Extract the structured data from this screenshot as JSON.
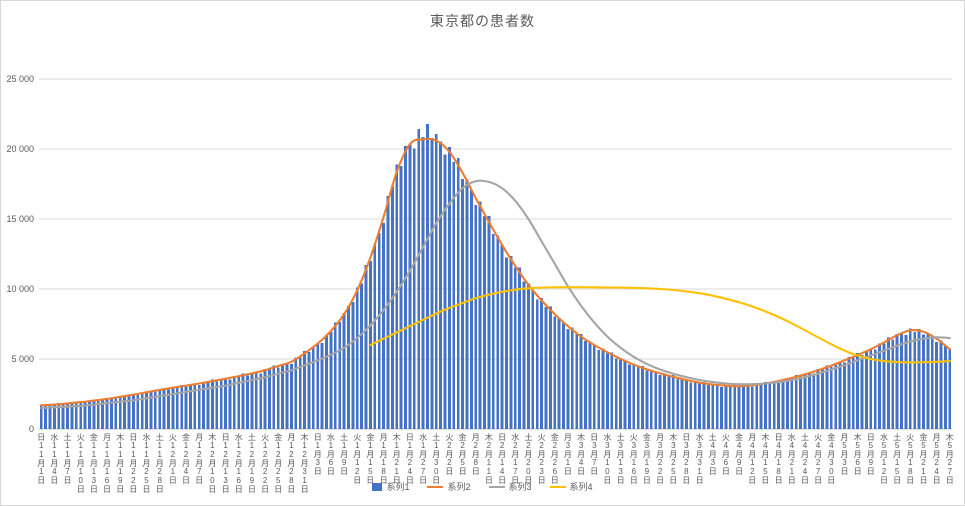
{
  "chart": {
    "frame_border_color": "#d6d6d6",
    "background": "#ffffff"
  },
  "chart_data": {
    "type": "combo",
    "title": "東京都の患者数",
    "xlabel": "",
    "ylabel": "",
    "ylim": [
      0,
      25000
    ],
    "grid": true,
    "legend_position": "bottom",
    "colors": {
      "grid": "#d9d9d9",
      "axis": "#bfbfbf",
      "text": "#595959"
    },
    "y_ticks": [
      {
        "value": 0,
        "label": "0"
      },
      {
        "value": 5000,
        "label": "5 000"
      },
      {
        "value": 10000,
        "label": "10 000"
      },
      {
        "value": 15000,
        "label": "15 000"
      },
      {
        "value": 20000,
        "label": "20 000"
      },
      {
        "value": 25000,
        "label": "25 000"
      }
    ],
    "x_tick_step_days": 3,
    "x_ticks": [
      {
        "weekday": "日",
        "date": "11月1日"
      },
      {
        "weekday": "水",
        "date": "11月4日"
      },
      {
        "weekday": "土",
        "date": "11月7日"
      },
      {
        "weekday": "火",
        "date": "11月10日"
      },
      {
        "weekday": "金",
        "date": "11月13日"
      },
      {
        "weekday": "月",
        "date": "11月16日"
      },
      {
        "weekday": "木",
        "date": "11月19日"
      },
      {
        "weekday": "日",
        "date": "11月22日"
      },
      {
        "weekday": "水",
        "date": "11月25日"
      },
      {
        "weekday": "土",
        "date": "11月28日"
      },
      {
        "weekday": "火",
        "date": "12月1日"
      },
      {
        "weekday": "金",
        "date": "12月4日"
      },
      {
        "weekday": "月",
        "date": "12月7日"
      },
      {
        "weekday": "木",
        "date": "12月10日"
      },
      {
        "weekday": "日",
        "date": "12月13日"
      },
      {
        "weekday": "水",
        "date": "12月16日"
      },
      {
        "weekday": "土",
        "date": "12月19日"
      },
      {
        "weekday": "火",
        "date": "12月22日"
      },
      {
        "weekday": "金",
        "date": "12月25日"
      },
      {
        "weekday": "月",
        "date": "12月28日"
      },
      {
        "weekday": "木",
        "date": "12月31日"
      },
      {
        "weekday": "日",
        "date": "1月3日"
      },
      {
        "weekday": "水",
        "date": "1月6日"
      },
      {
        "weekday": "土",
        "date": "1月9日"
      },
      {
        "weekday": "火",
        "date": "1月12日"
      },
      {
        "weekday": "金",
        "date": "1月15日"
      },
      {
        "weekday": "月",
        "date": "1月18日"
      },
      {
        "weekday": "木",
        "date": "1月21日"
      },
      {
        "weekday": "日",
        "date": "1月24日"
      },
      {
        "weekday": "水",
        "date": "1月27日"
      },
      {
        "weekday": "土",
        "date": "1月30日"
      },
      {
        "weekday": "火",
        "date": "2月2日"
      },
      {
        "weekday": "金",
        "date": "2月5日"
      },
      {
        "weekday": "月",
        "date": "2月8日"
      },
      {
        "weekday": "木",
        "date": "2月11日"
      },
      {
        "weekday": "日",
        "date": "2月14日"
      },
      {
        "weekday": "水",
        "date": "2月17日"
      },
      {
        "weekday": "土",
        "date": "2月20日"
      },
      {
        "weekday": "火",
        "date": "2月23日"
      },
      {
        "weekday": "金",
        "date": "2月26日"
      },
      {
        "weekday": "月",
        "date": "3月1日"
      },
      {
        "weekday": "木",
        "date": "3月4日"
      },
      {
        "weekday": "日",
        "date": "3月7日"
      },
      {
        "weekday": "水",
        "date": "3月10日"
      },
      {
        "weekday": "土",
        "date": "3月13日"
      },
      {
        "weekday": "火",
        "date": "3月16日"
      },
      {
        "weekday": "金",
        "date": "3月19日"
      },
      {
        "weekday": "月",
        "date": "3月22日"
      },
      {
        "weekday": "木",
        "date": "3月25日"
      },
      {
        "weekday": "日",
        "date": "3月28日"
      },
      {
        "weekday": "水",
        "date": "3月31日"
      },
      {
        "weekday": "土",
        "date": "4月3日"
      },
      {
        "weekday": "火",
        "date": "4月6日"
      },
      {
        "weekday": "金",
        "date": "4月9日"
      },
      {
        "weekday": "月",
        "date": "4月12日"
      },
      {
        "weekday": "木",
        "date": "4月15日"
      },
      {
        "weekday": "日",
        "date": "4月18日"
      },
      {
        "weekday": "水",
        "date": "4月21日"
      },
      {
        "weekday": "土",
        "date": "4月24日"
      },
      {
        "weekday": "火",
        "date": "4月27日"
      },
      {
        "weekday": "金",
        "date": "4月30日"
      },
      {
        "weekday": "月",
        "date": "5月3日"
      },
      {
        "weekday": "木",
        "date": "5月6日"
      },
      {
        "weekday": "日",
        "date": "5月9日"
      },
      {
        "weekday": "水",
        "date": "5月12日"
      },
      {
        "weekday": "土",
        "date": "5月15日"
      },
      {
        "weekday": "火",
        "date": "5月18日"
      },
      {
        "weekday": "金",
        "date": "5月21日"
      },
      {
        "weekday": "月",
        "date": "5月24日"
      },
      {
        "weekday": "木",
        "date": "5月27日"
      }
    ],
    "series": [
      {
        "name": "系列1",
        "type": "bar",
        "color": "#4472C4",
        "start_day": 0,
        "step_days": 1,
        "values": [
          1700,
          1670,
          1780,
          1750,
          1840,
          1770,
          1850,
          1850,
          1830,
          1960,
          1940,
          2050,
          1990,
          2080,
          2100,
          2090,
          2240,
          2230,
          2370,
          2300,
          2420,
          2450,
          2430,
          2610,
          2590,
          2760,
          2680,
          2820,
          2840,
          2810,
          3010,
          2970,
          3140,
          3040,
          3180,
          3200,
          3150,
          3370,
          3330,
          3520,
          3410,
          3570,
          3590,
          3540,
          3790,
          3740,
          3960,
          3830,
          4010,
          4040,
          3980,
          4280,
          4260,
          4530,
          4410,
          4650,
          4700,
          4660,
          5100,
          5150,
          5560,
          5490,
          5910,
          6100,
          6160,
          6730,
          6930,
          7620,
          7640,
          8280,
          8780,
          9070,
          10120,
          10400,
          11720,
          12010,
          13260,
          14000,
          14710,
          16660,
          17330,
          18880,
          18780,
          20200,
          20330,
          20050,
          21420,
          20860,
          21770,
          20780,
          21080,
          20530,
          19590,
          20130,
          19070,
          19360,
          17860,
          17830,
          17080,
          16010,
          16240,
          15200,
          15220,
          13920,
          13810,
          13150,
          12250,
          12340,
          11530,
          11540,
          10540,
          10400,
          9930,
          9260,
          9360,
          8710,
          8760,
          8040,
          7980,
          7600,
          7130,
          7240,
          6780,
          6800,
          6270,
          6260,
          6000,
          5630,
          5750,
          5420,
          5470,
          5050,
          5060,
          4880,
          4600,
          4690,
          4440,
          4510,
          4180,
          4190,
          4060,
          3860,
          3970,
          3760,
          3840,
          3580,
          3610,
          3500,
          3330,
          3440,
          3280,
          3350,
          3150,
          3210,
          3140,
          3010,
          3150,
          3040,
          3150,
          2990,
          3110,
          3100,
          3030,
          3210,
          3170,
          3350,
          3230,
          3380,
          3430,
          3400,
          3650,
          3610,
          3850,
          3750,
          3950,
          4000,
          3980,
          4280,
          4260,
          4530,
          4430,
          4700,
          4780,
          4750,
          5130,
          5100,
          5430,
          5290,
          5610,
          5700,
          5670,
          6120,
          6110,
          6540,
          6390,
          6770,
          6820,
          6730,
          7190,
          6930,
          7160,
          6760,
          6800,
          6570,
          6210,
          6320,
          5940,
          5740
        ]
      },
      {
        "name": "系列2",
        "type": "line",
        "color": "#ED7D31",
        "start_day": 0,
        "step_days": 3,
        "values": [
          1700,
          1750,
          1830,
          1920,
          2030,
          2150,
          2300,
          2450,
          2620,
          2790,
          2950,
          3100,
          3250,
          3420,
          3590,
          3780,
          3970,
          4200,
          4500,
          4800,
          5400,
          6100,
          7000,
          8200,
          9900,
          12250,
          15150,
          18350,
          20350,
          20700,
          20600,
          19800,
          18300,
          16500,
          14800,
          13150,
          11650,
          10300,
          9180,
          8200,
          7350,
          6600,
          6000,
          5480,
          5010,
          4600,
          4260,
          3980,
          3730,
          3500,
          3310,
          3180,
          3090,
          3050,
          3130,
          3250,
          3430,
          3650,
          3910,
          4200,
          4530,
          4900,
          5280,
          5700,
          6180,
          6700,
          7050,
          6950,
          6450,
          5700
        ]
      },
      {
        "name": "系列3",
        "type": "line",
        "color": "#A5A5A5",
        "start_day": 0,
        "step_days": 3,
        "values": [
          1500,
          1550,
          1600,
          1650,
          1750,
          1850,
          1950,
          2050,
          2200,
          2350,
          2500,
          2650,
          2800,
          2950,
          3100,
          3300,
          3500,
          3700,
          3950,
          4200,
          4550,
          4900,
          5300,
          5800,
          6500,
          7400,
          8500,
          9800,
          11300,
          13000,
          14700,
          16100,
          17200,
          17700,
          17650,
          17200,
          16300,
          15000,
          13400,
          11800,
          10200,
          8800,
          7600,
          6600,
          5800,
          5150,
          4650,
          4250,
          3950,
          3700,
          3500,
          3350,
          3250,
          3200,
          3200,
          3250,
          3350,
          3500,
          3700,
          3950,
          4250,
          4550,
          4900,
          5250,
          5600,
          5950,
          6250,
          6450,
          6550,
          6500
        ]
      },
      {
        "name": "系列4",
        "type": "line",
        "color": "#FFC000",
        "start_day": 75,
        "step_days": 3,
        "values": [
          6000,
          6450,
          6900,
          7350,
          7800,
          8250,
          8650,
          9000,
          9350,
          9600,
          9800,
          9950,
          10050,
          10100,
          10120,
          10130,
          10130,
          10120,
          10110,
          10100,
          10080,
          10050,
          10000,
          9930,
          9830,
          9700,
          9520,
          9300,
          9050,
          8750,
          8400,
          8000,
          7550,
          7050,
          6550,
          6050,
          5600,
          5250,
          5000,
          4850,
          4780,
          4760,
          4770,
          4800,
          4850
        ]
      }
    ]
  }
}
